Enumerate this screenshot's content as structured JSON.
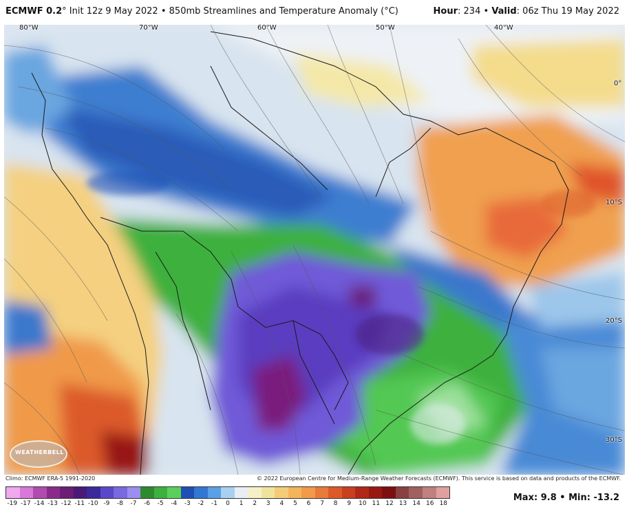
{
  "header": {
    "model": "ECMWF 0.2",
    "degree": "°",
    "init": "Init 12z 9 May 2022",
    "bullet": "•",
    "product": "850mb Streamlines and Temperature Anomaly (°C)",
    "hour_label": "Hour",
    "hour_value": "234",
    "valid_label": "Valid",
    "valid_value": "06z Thu 19 May 2022"
  },
  "map": {
    "lon_labels": [
      "80°W",
      "70°W",
      "60°W",
      "50°W",
      "40°W"
    ],
    "lat_labels": [
      "0°",
      "10°S",
      "20°S",
      "30°S"
    ],
    "logo_text": "WEATHERBELL"
  },
  "footer": {
    "climo": "Climo: ECMWF ERA-5 1991-2020",
    "copyright": "© 2022 European Centre for Medium-Range Weather Forecasts (ECMWF). This service is based on data and products of the ECMWF."
  },
  "colorbar": {
    "labels": [
      "-19",
      "-17",
      "-14",
      "-13",
      "-12",
      "-11",
      "-10",
      "-9",
      "-8",
      "-7",
      "-6",
      "-5",
      "-4",
      "-3",
      "-2",
      "-1",
      "0",
      "1",
      "2",
      "3",
      "4",
      "5",
      "6",
      "7",
      "8",
      "9",
      "10",
      "11",
      "12",
      "13",
      "14",
      "16",
      "18"
    ],
    "colors": [
      "#f0a8f0",
      "#d878d8",
      "#b04cb0",
      "#8c2a8c",
      "#6a1e74",
      "#4a1a78",
      "#3a2a9c",
      "#5a48c8",
      "#7a6ae0",
      "#9c8ef0",
      "#2e8a2e",
      "#3eb03e",
      "#5ad05a",
      "#1e50b4",
      "#3278d2",
      "#5aa0e6",
      "#a8d0f0",
      "#e8eef4",
      "#f4f0c8",
      "#f0e49c",
      "#f4cc78",
      "#f4b45a",
      "#f09a4a",
      "#e87a3a",
      "#dc5a2a",
      "#c8401e",
      "#b02818",
      "#981812",
      "#7c1010",
      "#8a4040",
      "#a06060",
      "#c08080",
      "#e0a0a0"
    ]
  },
  "stats": {
    "max_label": "Max",
    "max_value": "9.8",
    "min_label": "Min",
    "min_value": "-13.2",
    "separator": "•"
  }
}
